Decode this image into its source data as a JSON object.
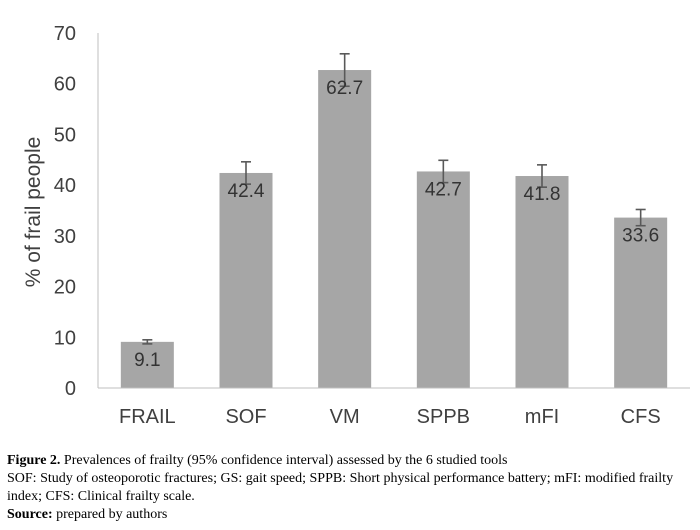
{
  "chart_data": {
    "type": "bar",
    "categories": [
      "FRAIL",
      "SOF",
      "VM",
      "SPPB",
      "mFI",
      "CFS"
    ],
    "values": [
      9.1,
      42.4,
      62.7,
      42.7,
      41.8,
      33.6
    ],
    "error_low": [
      8.7,
      40.2,
      59.5,
      40.5,
      39.6,
      32.0
    ],
    "error_high": [
      9.5,
      44.6,
      65.9,
      44.9,
      44.0,
      35.2
    ],
    "data_labels": [
      "9.1",
      "42.4",
      "62.7",
      "42.7",
      "41.8",
      "33.6"
    ],
    "ylabel": "% of frail people",
    "xlabel": "",
    "ylim": [
      0,
      70
    ],
    "yticks": [
      0,
      10,
      20,
      30,
      40,
      50,
      60,
      70
    ],
    "grid": false,
    "bar_color": "#a6a6a6",
    "error_bar_color": "#595959"
  },
  "caption": {
    "figure_label": "Figure 2.",
    "figure_text": " Prevalences of frailty (95% confidence interval) assessed by the 6 studied tools",
    "abbreviations": "SOF: Study of osteoporotic fractures; GS: gait speed; SPPB: Short physical performance battery; mFI: modified frailty index; CFS: Clinical frailty scale.",
    "source_label": "Source:",
    "source_text": " prepared by authors"
  }
}
